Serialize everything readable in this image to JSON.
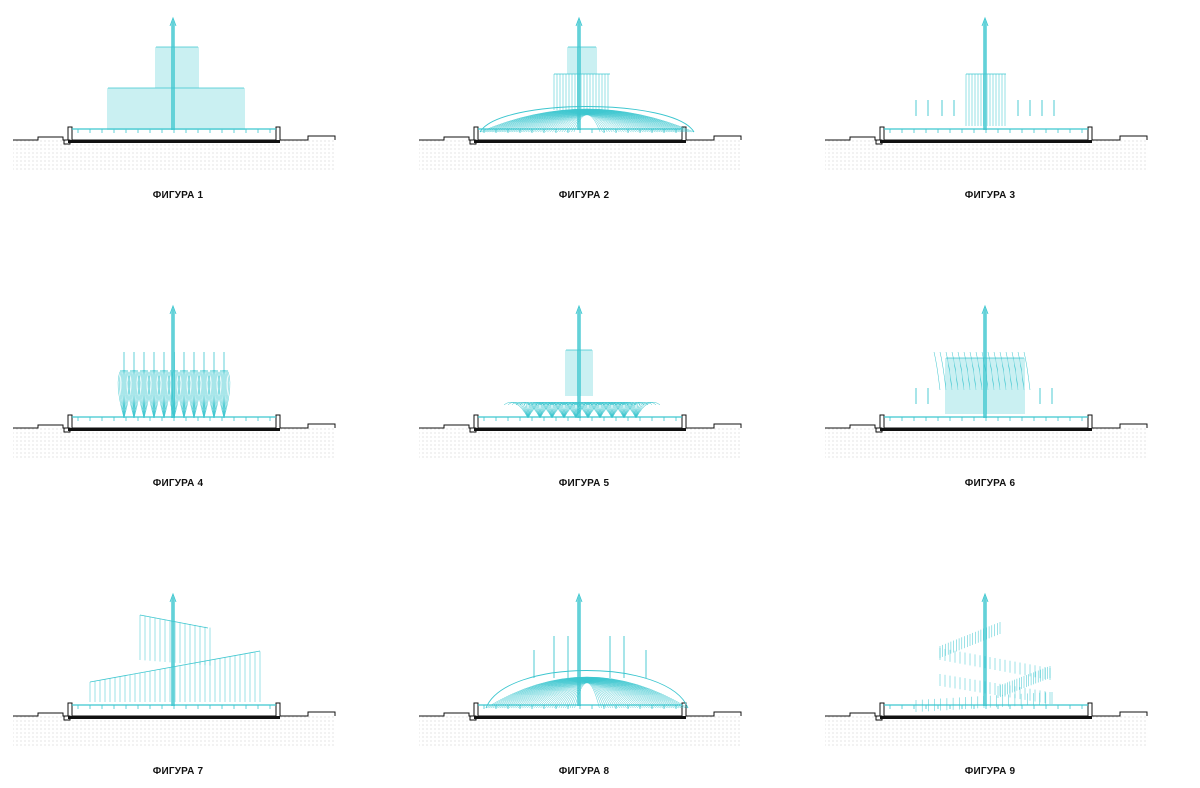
{
  "colors": {
    "water": "#3cc6cf",
    "ground_dots": "#bdbdbd",
    "structure": "#111111"
  },
  "figures": [
    {
      "label": "ФИГУРА 1",
      "pattern": "tiered-columns"
    },
    {
      "label": "ФИГУРА 2",
      "pattern": "dome-with-crown"
    },
    {
      "label": "ФИГУРА 3",
      "pattern": "sparse-jets"
    },
    {
      "label": "ФИГУРА 4",
      "pattern": "candelabra-row"
    },
    {
      "label": "ФИГУРА 5",
      "pattern": "low-fans-with-crown"
    },
    {
      "label": "ФИГУРА 6",
      "pattern": "flared-columns"
    },
    {
      "label": "ФИГУРА 7",
      "pattern": "tilted-curtains"
    },
    {
      "label": "ФИГУРА 8",
      "pattern": "dome-with-jets"
    },
    {
      "label": "ФИГУРА 9",
      "pattern": "spiral"
    }
  ]
}
